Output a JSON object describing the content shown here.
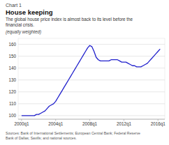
{
  "chart_data": {
    "type": "line",
    "supertitle": "Chart 1",
    "title": "House keeping",
    "subtitle": "The global house price index is almost back to its level before the\nfinancial crisis.",
    "ylabel": "(equally weighted)",
    "source": "Sources: Bank of International Settlements; European Central Bank; Federal Reserve\nBank of Dallas; Savills; and national sources.",
    "color": "#2020cc",
    "grid": true,
    "xlim": [
      1999.6,
      2016.8
    ],
    "xticks": [
      {
        "value": 2000,
        "label": "2000q1"
      },
      {
        "value": 2004,
        "label": "2004q1"
      },
      {
        "value": 2008,
        "label": "2008q1"
      },
      {
        "value": 2012,
        "label": "2012q1"
      },
      {
        "value": 2016,
        "label": "2016q1"
      }
    ],
    "ylim": [
      97,
      165
    ],
    "yticks": [
      100,
      110,
      120,
      130,
      140,
      150,
      160
    ],
    "x": [
      2000.0,
      2000.25,
      2000.5,
      2000.75,
      2001.0,
      2001.25,
      2001.5,
      2001.75,
      2002.0,
      2002.25,
      2002.5,
      2002.75,
      2003.0,
      2003.25,
      2003.5,
      2003.75,
      2004.0,
      2004.25,
      2004.5,
      2004.75,
      2005.0,
      2005.25,
      2005.5,
      2005.75,
      2006.0,
      2006.25,
      2006.5,
      2006.75,
      2007.0,
      2007.25,
      2007.5,
      2007.75,
      2008.0,
      2008.25,
      2008.5,
      2008.75,
      2009.0,
      2009.25,
      2009.5,
      2009.75,
      2010.0,
      2010.25,
      2010.5,
      2010.75,
      2011.0,
      2011.25,
      2011.5,
      2011.75,
      2012.0,
      2012.25,
      2012.5,
      2012.75,
      2013.0,
      2013.25,
      2013.5,
      2013.75,
      2014.0,
      2014.25,
      2014.5,
      2014.75,
      2015.0,
      2015.25,
      2015.5,
      2015.75,
      2016.0,
      2016.25
    ],
    "values": [
      100,
      100,
      100,
      100,
      100,
      100,
      100,
      101,
      101,
      102,
      103,
      104,
      106,
      108,
      109,
      110,
      112,
      115,
      118,
      121,
      124,
      127,
      130,
      133,
      136,
      139,
      142,
      145,
      148,
      151,
      154,
      157,
      159,
      158,
      154,
      149,
      147,
      146,
      146,
      146,
      146,
      146,
      147,
      147,
      147,
      147,
      146,
      145,
      145,
      145,
      144,
      143,
      142,
      142,
      141,
      141,
      141,
      142,
      143,
      144,
      146,
      148,
      150,
      152,
      154,
      156
    ]
  }
}
